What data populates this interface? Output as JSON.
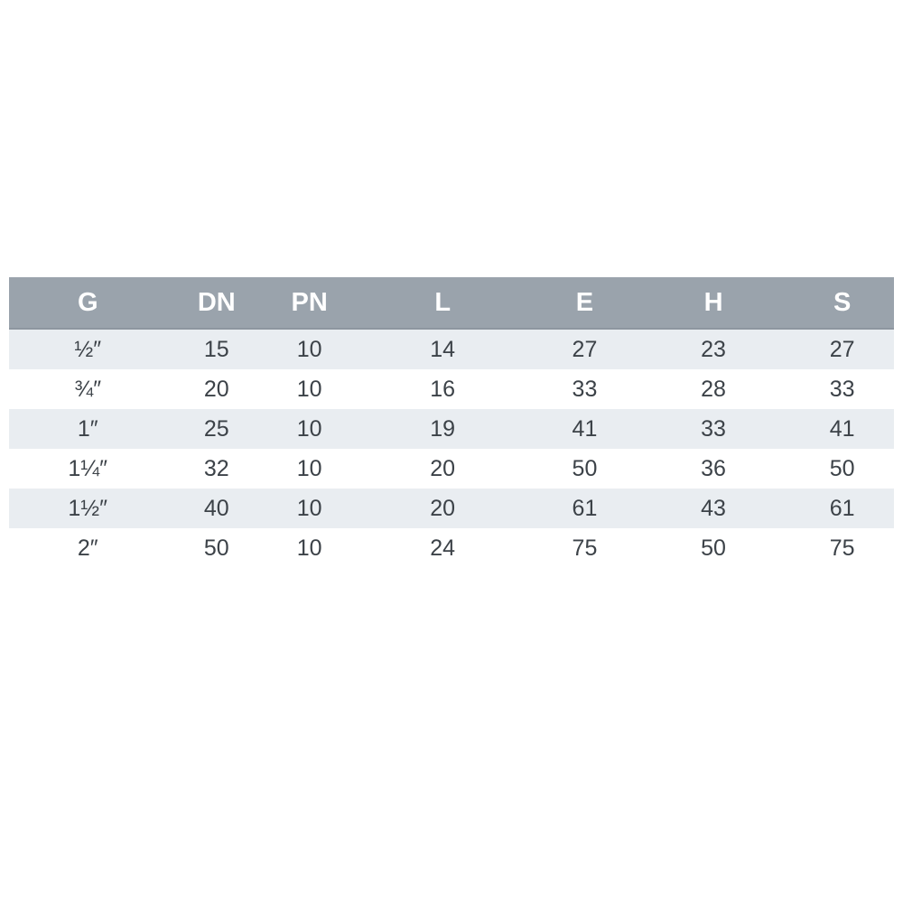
{
  "table": {
    "headers": [
      "G",
      "DN",
      "PN",
      "L",
      "E",
      "H",
      "S"
    ],
    "rows": [
      [
        "½″",
        "15",
        "10",
        "14",
        "27",
        "23",
        "27"
      ],
      [
        "¾″",
        "20",
        "10",
        "16",
        "33",
        "28",
        "33"
      ],
      [
        "1″",
        "25",
        "10",
        "19",
        "41",
        "33",
        "41"
      ],
      [
        "1¼″",
        "32",
        "10",
        "20",
        "50",
        "36",
        "50"
      ],
      [
        "1½″",
        "40",
        "10",
        "20",
        "61",
        "43",
        "61"
      ],
      [
        "2″",
        "50",
        "10",
        "24",
        "75",
        "50",
        "75"
      ]
    ],
    "colors": {
      "header_bg": "#9aa3ac",
      "header_text": "#ffffff",
      "row_alt_bg": "#e9edf1",
      "row_bg": "#ffffff",
      "cell_text": "#3c4248"
    }
  }
}
